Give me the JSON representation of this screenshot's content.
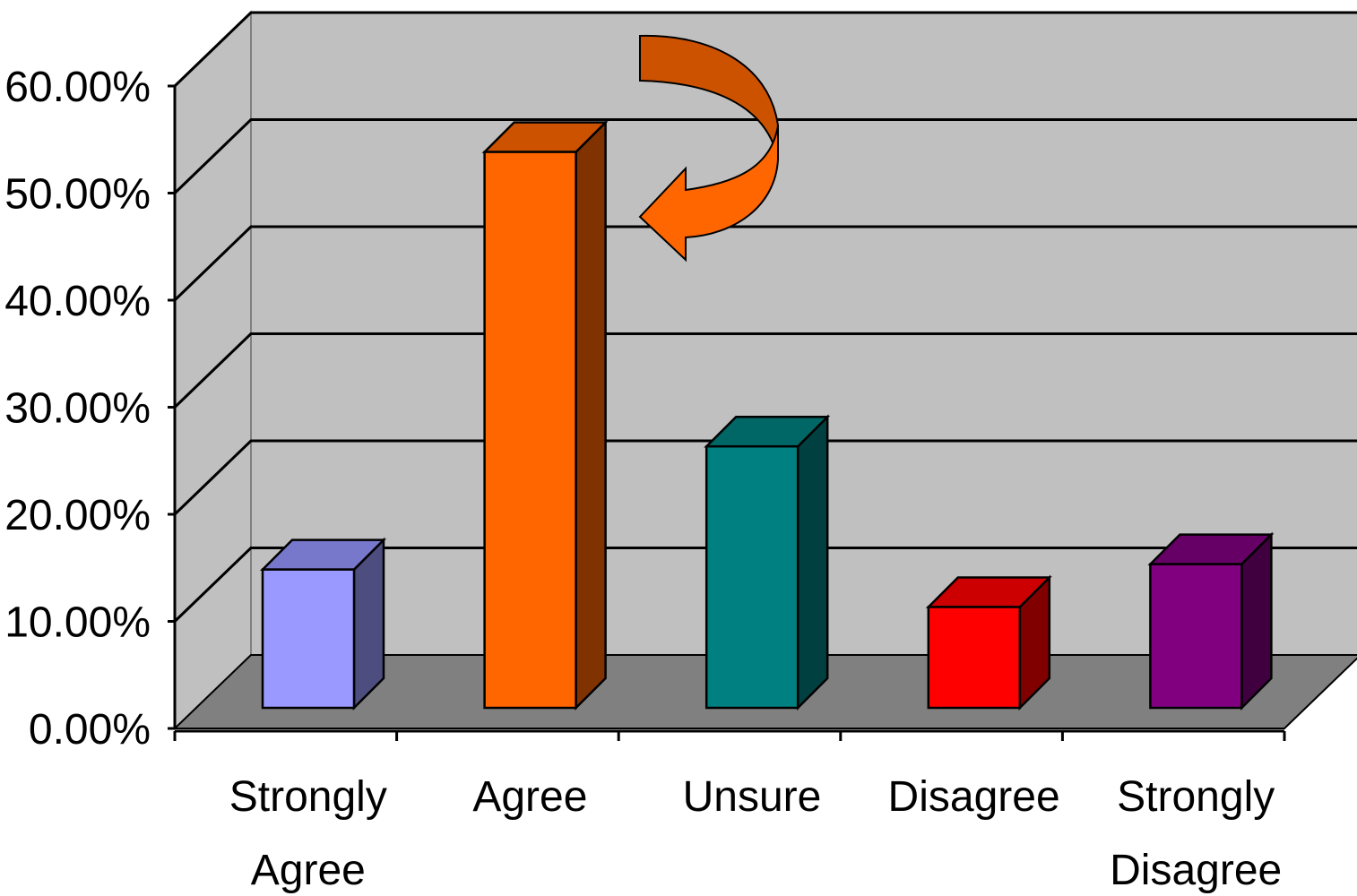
{
  "chart_data": {
    "type": "bar",
    "style": "3d-column",
    "categories": [
      [
        "Strongly",
        "Agree"
      ],
      [
        "Agree"
      ],
      [
        "Unsure"
      ],
      [
        "Disagree"
      ],
      [
        "Strongly",
        "Disagree"
      ]
    ],
    "values": [
      13.0,
      52.0,
      24.5,
      9.5,
      13.5
    ],
    "ylim": [
      0,
      60
    ],
    "y_ticks": [
      "0.00%",
      "10.00%",
      "20.00%",
      "30.00%",
      "40.00%",
      "50.00%",
      "60.00%"
    ],
    "grid": true,
    "legend": "none",
    "annotation": "curved arrow pointing to Agree bar",
    "colors": {
      "front": [
        "#9999ff",
        "#ff6600",
        "#008080",
        "#ff0000",
        "#800080"
      ],
      "top": [
        "#7777cc",
        "#cc5200",
        "#006666",
        "#cc0000",
        "#660066"
      ],
      "side": [
        "#4d4d80",
        "#803300",
        "#004040",
        "#800000",
        "#400040"
      ],
      "back_wall": "#c0c0c0",
      "floor": "#808080",
      "arrow_light": "#ff6600",
      "arrow_dark": "#cc5200"
    }
  }
}
